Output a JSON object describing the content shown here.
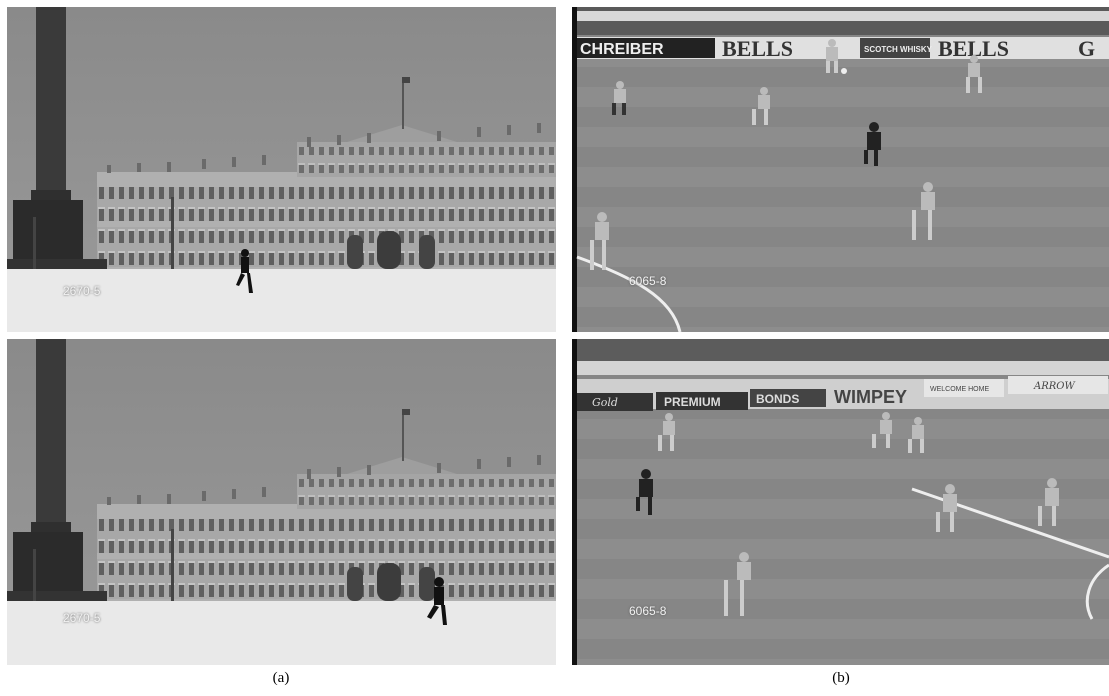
{
  "panels": {
    "palace_top": {
      "frame_code": "2670-5"
    },
    "palace_bottom": {
      "frame_code": "2670-5"
    },
    "football_top": {
      "frame_code": "6065-8",
      "banners": [
        "CHREIBER",
        "BELLS",
        "SCOTCH WHISKY",
        "BELLS",
        "G"
      ]
    },
    "football_bottom": {
      "frame_code": "6065-8",
      "banners": [
        "Gold",
        "PREMIUM",
        "BONDS",
        "WIMPEY",
        "WELCOME HOME",
        "ARROW"
      ]
    }
  },
  "captions": {
    "left": "(a)",
    "right": "(b)"
  },
  "colors": {
    "sky": "#8c8c8c",
    "snow": "#ececec",
    "pitch": "#8a8a8a",
    "palace": "#a9a9a9"
  }
}
